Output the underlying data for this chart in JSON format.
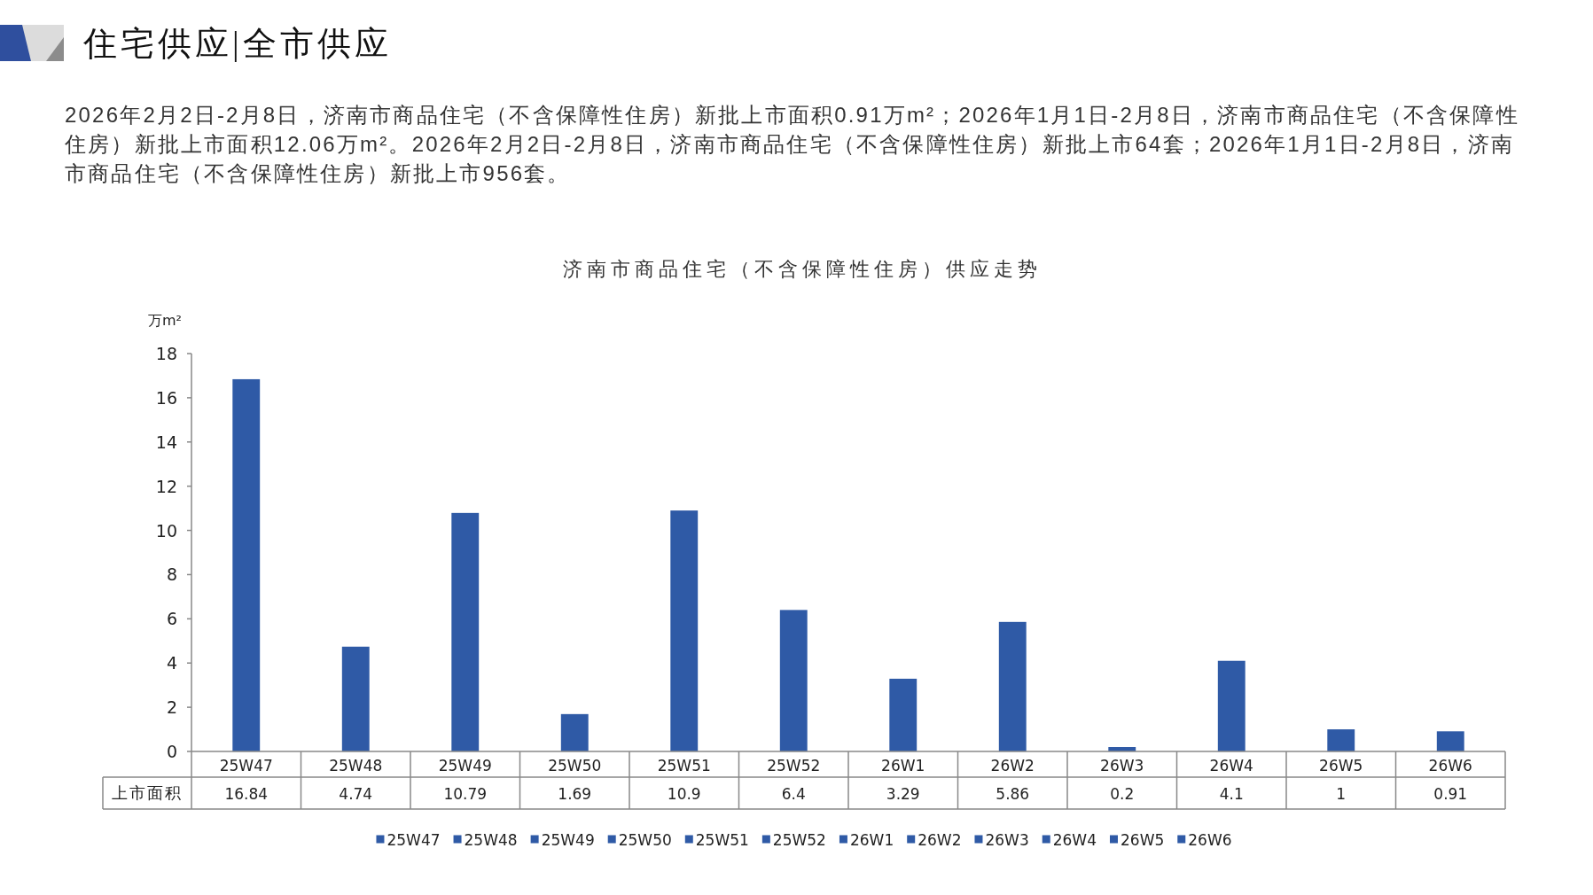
{
  "chart_data": {
    "type": "bar",
    "title": "济南市商品住宅（不含保障性住房）供应走势",
    "ylabel": "万m²",
    "annotations": [
      "住宅供应|全市供应",
      "2026年2月2日-2月8日，济南市商品住宅（不含保障性住房）新批上市面积0.91万m²；2026年1月1日-2月8日，济南市商品住宅（不含保障性住房）新批上市面积12.06万m²。2026年2月2日-2月8日，济南市商品住宅（不含保障性住房）新批上市64套；2026年1月1日-2月8日，济南市商品住宅（不含保障性住房）新批上市956套。"
    ],
    "categories": [
      "25W47",
      "25W48",
      "25W49",
      "25W50",
      "25W51",
      "25W52",
      "26W1",
      "26W2",
      "26W3",
      "26W4",
      "26W5",
      "26W6"
    ],
    "series": [
      {
        "name": "上市面积",
        "colors": [
          "#2f5aa6",
          "#2f5aa6",
          "#2f5aa6",
          "#2f5aa6",
          "#2f5aa6",
          "#2f5aa6",
          "#2f5aa6",
          "#2f5aa6",
          "#2f5aa6",
          "#2f5aa6",
          "#2f5aa6",
          "#2f5aa6"
        ],
        "values": [
          16.84,
          4.74,
          10.79,
          1.69,
          10.9,
          6.4,
          3.29,
          5.86,
          0.2,
          4.1,
          1,
          0.91
        ]
      }
    ],
    "ylim": [
      0,
      18
    ],
    "yticks": [
      0,
      2,
      4,
      6,
      8,
      10,
      12,
      14,
      16,
      18
    ],
    "legend": "bottom",
    "data_labels": true
  }
}
